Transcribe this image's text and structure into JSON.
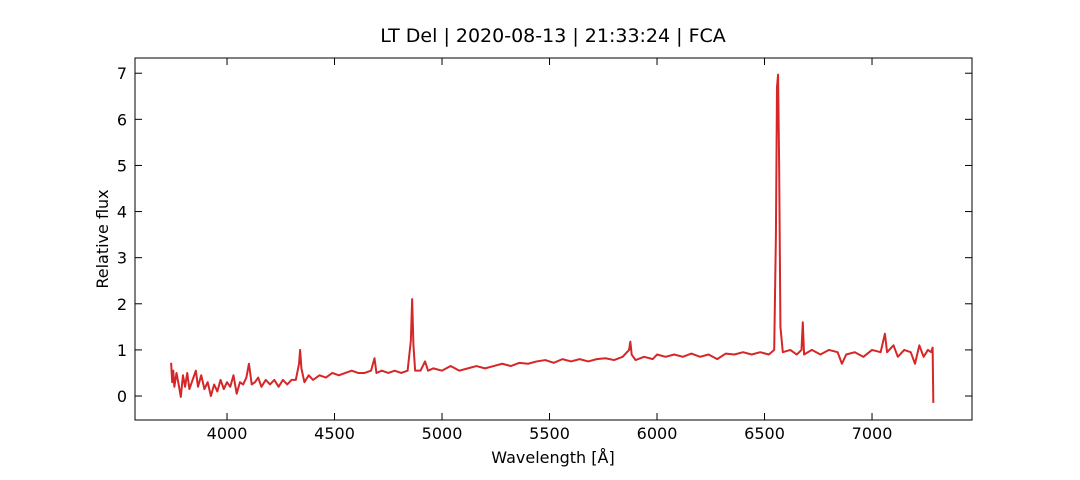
{
  "chart_data": {
    "type": "line",
    "title": "LT Del | 2020-08-13 | 21:33:24 | FCA",
    "x_label": "Wavelength [Å]",
    "y_label": "Relative flux",
    "color": "#d62728",
    "xlim": [
      3572,
      7465
    ],
    "ylim": [
      -0.52,
      7.33
    ],
    "xticks": [
      4000,
      4500,
      5000,
      5500,
      6000,
      6500,
      7000
    ],
    "yticks": [
      0,
      1,
      2,
      3,
      4,
      5,
      6,
      7
    ],
    "x": [
      3740,
      3745,
      3750,
      3755,
      3765,
      3775,
      3785,
      3795,
      3805,
      3815,
      3825,
      3840,
      3855,
      3865,
      3880,
      3895,
      3910,
      3925,
      3940,
      3955,
      3970,
      3985,
      4000,
      4015,
      4030,
      4045,
      4060,
      4075,
      4090,
      4102,
      4115,
      4130,
      4145,
      4160,
      4180,
      4200,
      4220,
      4240,
      4260,
      4280,
      4300,
      4320,
      4335,
      4340,
      4346,
      4360,
      4380,
      4400,
      4430,
      4460,
      4490,
      4520,
      4550,
      4580,
      4610,
      4640,
      4670,
      4686,
      4695,
      4720,
      4750,
      4780,
      4810,
      4840,
      4855,
      4861,
      4867,
      4875,
      4900,
      4921,
      4935,
      4960,
      5000,
      5040,
      5080,
      5120,
      5160,
      5200,
      5240,
      5280,
      5320,
      5360,
      5400,
      5440,
      5480,
      5520,
      5560,
      5600,
      5640,
      5680,
      5720,
      5760,
      5800,
      5840,
      5870,
      5876,
      5882,
      5900,
      5940,
      5980,
      6000,
      6040,
      6080,
      6120,
      6160,
      6200,
      6240,
      6280,
      6320,
      6360,
      6400,
      6440,
      6480,
      6520,
      6545,
      6553,
      6558,
      6563,
      6568,
      6574,
      6585,
      6620,
      6650,
      6672,
      6678,
      6684,
      6720,
      6760,
      6800,
      6840,
      6860,
      6880,
      6920,
      6960,
      7000,
      7040,
      7060,
      7070,
      7100,
      7120,
      7150,
      7180,
      7200,
      7220,
      7240,
      7260,
      7275,
      7282,
      7285
    ],
    "values": [
      0.72,
      0.3,
      0.55,
      0.2,
      0.5,
      0.25,
      -0.02,
      0.45,
      0.2,
      0.5,
      0.15,
      0.35,
      0.55,
      0.2,
      0.45,
      0.15,
      0.3,
      0.0,
      0.25,
      0.1,
      0.35,
      0.15,
      0.3,
      0.2,
      0.45,
      0.05,
      0.3,
      0.25,
      0.4,
      0.7,
      0.25,
      0.3,
      0.4,
      0.2,
      0.35,
      0.25,
      0.35,
      0.2,
      0.35,
      0.25,
      0.35,
      0.35,
      0.7,
      1.0,
      0.6,
      0.3,
      0.45,
      0.35,
      0.45,
      0.4,
      0.5,
      0.45,
      0.5,
      0.55,
      0.5,
      0.5,
      0.55,
      0.82,
      0.5,
      0.55,
      0.5,
      0.55,
      0.5,
      0.55,
      1.2,
      2.1,
      1.1,
      0.55,
      0.55,
      0.75,
      0.55,
      0.6,
      0.55,
      0.65,
      0.55,
      0.6,
      0.65,
      0.6,
      0.65,
      0.7,
      0.65,
      0.72,
      0.7,
      0.75,
      0.78,
      0.72,
      0.8,
      0.75,
      0.8,
      0.75,
      0.8,
      0.82,
      0.78,
      0.85,
      1.0,
      1.18,
      0.9,
      0.78,
      0.85,
      0.8,
      0.9,
      0.85,
      0.9,
      0.85,
      0.92,
      0.85,
      0.9,
      0.8,
      0.92,
      0.9,
      0.95,
      0.9,
      0.95,
      0.9,
      1.0,
      3.5,
      6.7,
      6.97,
      5.0,
      1.5,
      0.95,
      1.0,
      0.9,
      1.0,
      1.6,
      0.9,
      1.0,
      0.9,
      1.0,
      0.95,
      0.7,
      0.9,
      0.95,
      0.85,
      1.0,
      0.95,
      1.35,
      0.95,
      1.1,
      0.85,
      1.0,
      0.95,
      0.7,
      1.1,
      0.85,
      1.0,
      0.95,
      1.05,
      -0.15
    ]
  }
}
